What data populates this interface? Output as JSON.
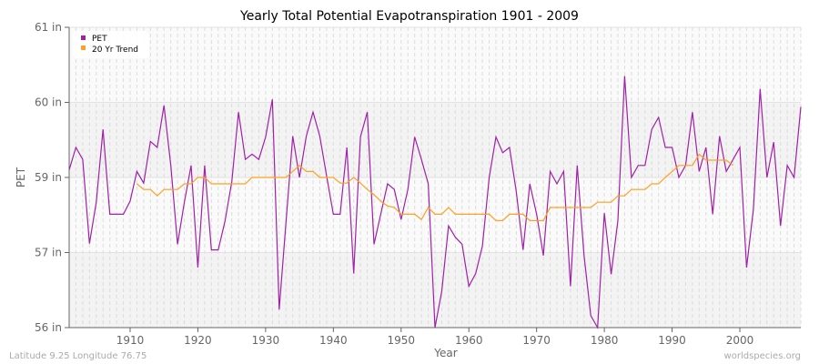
{
  "chart_data": {
    "type": "line",
    "title": "Yearly Total Potential Evapotranspiration 1901 - 2009",
    "xlabel": "Year",
    "ylabel": "PET",
    "x_ticks": [
      1910,
      1920,
      1930,
      1940,
      1950,
      1960,
      1970,
      1980,
      1990,
      2000
    ],
    "y_ticks": [
      {
        "value": 56,
        "label": "56 in"
      },
      {
        "value": 57,
        "label": "57 in"
      },
      {
        "value": 59,
        "label": "59 in"
      },
      {
        "value": 60,
        "label": "60 in"
      },
      {
        "value": 61,
        "label": "61 in"
      }
    ],
    "xlim": [
      1901,
      2009
    ],
    "ylim": [
      56,
      61
    ],
    "grid": true,
    "legend_position": "top-left",
    "series": [
      {
        "name": "PET",
        "color": "#a020a8",
        "x_start": 1901,
        "values": [
          59.1,
          59.4,
          59.24,
          57.24,
          58.34,
          59.64,
          58.02,
          58.02,
          58.02,
          58.37,
          59.08,
          58.85,
          59.48,
          59.4,
          59.96,
          59.16,
          57.22,
          58.34,
          59.16,
          56.8,
          59.16,
          57.07,
          57.07,
          57.83,
          58.88,
          59.87,
          59.24,
          59.31,
          59.24,
          59.54,
          60.04,
          56.24,
          57.78,
          59.55,
          59.0,
          59.55,
          59.87,
          59.55,
          59.02,
          58.02,
          58.02,
          59.4,
          56.72,
          59.54,
          59.87,
          57.22,
          58.02,
          58.83,
          58.68,
          57.88,
          58.68,
          59.54,
          59.24,
          58.83,
          56.0,
          56.48,
          57.71,
          57.41,
          57.22,
          56.55,
          56.72,
          57.17,
          59.0,
          59.54,
          59.33,
          59.4,
          58.63,
          57.07,
          58.83,
          58.02,
          56.96,
          59.08,
          58.83,
          59.08,
          56.55,
          59.16,
          56.96,
          56.16,
          56.0,
          58.05,
          56.71,
          57.85,
          60.35,
          59.0,
          59.16,
          59.16,
          59.64,
          59.8,
          59.4,
          59.4,
          59.0,
          59.16,
          59.87,
          59.08,
          59.4,
          58.02,
          59.55,
          59.08,
          59.24,
          59.4,
          56.8,
          58.15,
          60.18,
          59.0,
          59.47,
          57.71,
          59.16,
          59.0,
          59.94
        ]
      },
      {
        "name": "20 Yr Trend",
        "color": "#ffa020",
        "x_start": 1911,
        "values": [
          58.83,
          58.68,
          58.68,
          58.51,
          58.68,
          58.68,
          58.68,
          58.83,
          58.83,
          59.0,
          59.0,
          58.83,
          58.83,
          58.83,
          58.83,
          58.83,
          58.83,
          59.0,
          59.0,
          59.0,
          59.0,
          59.0,
          59.0,
          59.08,
          59.16,
          59.08,
          59.08,
          59.0,
          59.0,
          59.0,
          58.85,
          58.85,
          59.0,
          58.85,
          58.68,
          58.54,
          58.37,
          58.24,
          58.2,
          58.02,
          58.02,
          58.02,
          57.88,
          58.2,
          58.02,
          58.02,
          58.2,
          58.02,
          58.02,
          58.02,
          58.02,
          58.02,
          58.02,
          57.85,
          57.85,
          58.02,
          58.02,
          58.02,
          57.85,
          57.85,
          57.85,
          58.2,
          58.2,
          58.2,
          58.2,
          58.2,
          58.2,
          58.2,
          58.34,
          58.34,
          58.34,
          58.51,
          58.51,
          58.68,
          58.68,
          58.68,
          58.83,
          58.83,
          59.0,
          59.08,
          59.16,
          59.16,
          59.16,
          59.31,
          59.23,
          59.23,
          59.23,
          59.23,
          59.16
        ]
      }
    ]
  },
  "footer": {
    "location": "Latitude 9.25 Longitude 76.75",
    "source": "worldspecies.org"
  }
}
